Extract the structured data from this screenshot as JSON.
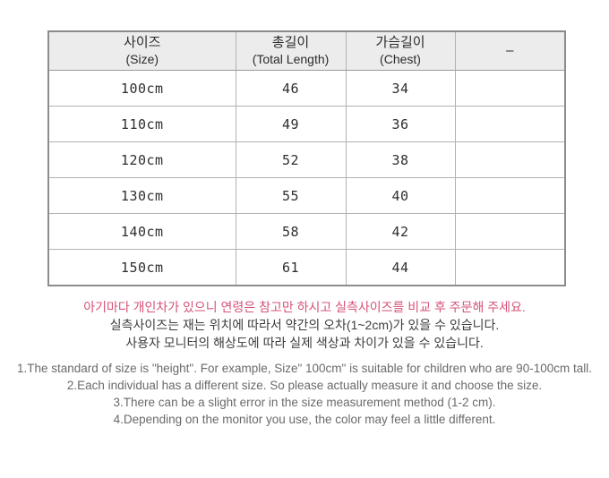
{
  "table": {
    "columns": [
      {
        "ko": "사이즈",
        "en": "(Size)"
      },
      {
        "ko": "총길이",
        "en": "(Total Length)"
      },
      {
        "ko": "가슴길이",
        "en": "(Chest)"
      },
      {
        "ko": "–",
        "en": ""
      }
    ],
    "rows": [
      {
        "size": "100cm",
        "total_length": "46",
        "chest": "34",
        "extra": ""
      },
      {
        "size": "110cm",
        "total_length": "49",
        "chest": "36",
        "extra": ""
      },
      {
        "size": "120cm",
        "total_length": "52",
        "chest": "38",
        "extra": ""
      },
      {
        "size": "130cm",
        "total_length": "55",
        "chest": "40",
        "extra": ""
      },
      {
        "size": "140cm",
        "total_length": "58",
        "chest": "42",
        "extra": ""
      },
      {
        "size": "150cm",
        "total_length": "61",
        "chest": "44",
        "extra": ""
      }
    ]
  },
  "notes_ko": {
    "highlight": "아기마다 개인차가 있으니 연령은 참고만 하시고 실측사이즈를 비교 후 주문해 주세요.",
    "line2": "실측사이즈는 재는 위치에 따라서 약간의 오차(1~2cm)가 있을 수 있습니다.",
    "line3": "사용자 모니터의 해상도에 따라 실제 색상과 차이가 있을 수 있습니다."
  },
  "notes_en": [
    "1.The standard of size is \"height\". For example,  Size\" 100cm\" is suitable for children who are 90-100cm tall.",
    "2.Each individual has a different size. So please actually measure it and choose the size.",
    "3.There can be a slight error in the size measurement method (1-2 cm).",
    "4.Depending on the monitor you use, the color may feel a little different."
  ],
  "colors": {
    "highlight_text": "#d65377",
    "body_text": "#3d3d3d",
    "en_text": "#6a6a6a",
    "header_bg": "#ececec",
    "border_outer": "#8c8c8c",
    "border_inner": "#b2b2b2"
  }
}
